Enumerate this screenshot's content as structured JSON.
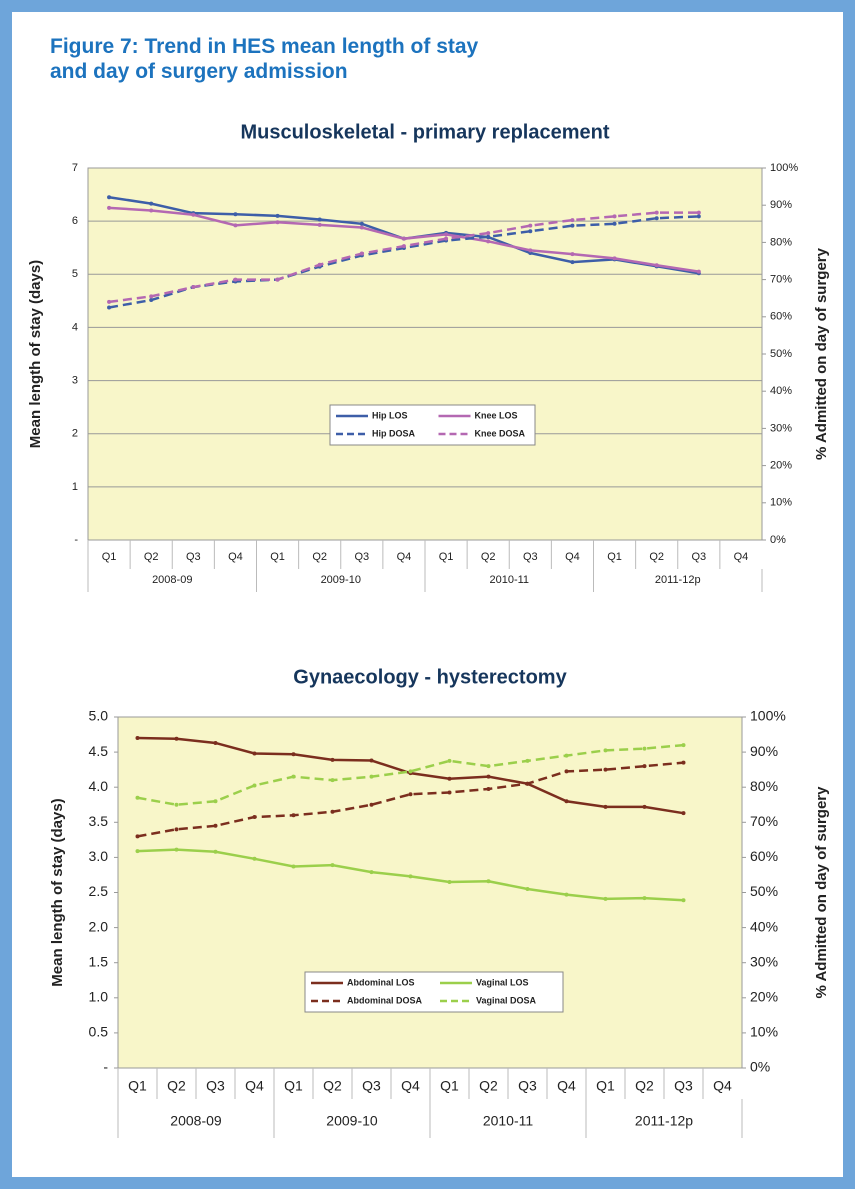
{
  "title": "Figure 7: Trend in HES mean length of stay and day of surgery admission",
  "chart_data": [
    {
      "type": "line",
      "title": "Musculoskeletal - primary replacement",
      "y_label": "Mean length of stay (days)",
      "y2_label": "% Admitted on day of surgery",
      "categories": [
        "Q1",
        "Q2",
        "Q3",
        "Q4",
        "Q1",
        "Q2",
        "Q3",
        "Q4",
        "Q1",
        "Q2",
        "Q3",
        "Q4",
        "Q1",
        "Q2",
        "Q3",
        "Q4"
      ],
      "category_groups": [
        "2008-09",
        "2009-10",
        "2010-11",
        "2011-12p"
      ],
      "ylim": [
        0,
        7
      ],
      "yticks": [
        {
          "value": 0,
          "label": "-"
        },
        1,
        2,
        3,
        4,
        5,
        6,
        7
      ],
      "y2lim": [
        0,
        100
      ],
      "y2ticks": [
        {
          "value": 0,
          "label": "0%"
        },
        {
          "value": 10,
          "label": "10%"
        },
        {
          "value": 20,
          "label": "20%"
        },
        {
          "value": 30,
          "label": "30%"
        },
        {
          "value": 40,
          "label": "40%"
        },
        {
          "value": 50,
          "label": "50%"
        },
        {
          "value": 60,
          "label": "60%"
        },
        {
          "value": 70,
          "label": "70%"
        },
        {
          "value": 80,
          "label": "80%"
        },
        {
          "value": 90,
          "label": "90%"
        },
        {
          "value": 100,
          "label": "100%"
        }
      ],
      "grid": true,
      "legend": "center",
      "series": [
        {
          "name": "Hip LOS",
          "color": "#3d5ea8",
          "dashed": false,
          "values": [
            6.45,
            6.33,
            6.15,
            6.13,
            6.1,
            6.03,
            5.95,
            5.67,
            5.78,
            5.7,
            5.4,
            5.23,
            5.28,
            5.15,
            5.02,
            null
          ]
        },
        {
          "name": "Knee LOS",
          "color": "#b468b2",
          "dashed": false,
          "values": [
            6.25,
            6.2,
            6.12,
            5.92,
            5.98,
            5.93,
            5.88,
            5.67,
            5.75,
            5.62,
            5.45,
            5.38,
            5.3,
            5.17,
            5.05,
            null
          ]
        },
        {
          "name": "Hip DOSA",
          "color": "#3d5ea8",
          "dashed": true,
          "axis": "y2",
          "values": [
            62.5,
            64.5,
            68,
            69.5,
            70,
            73.5,
            76.5,
            78.5,
            80.5,
            81.5,
            83,
            84.5,
            85,
            86.5,
            87,
            null
          ]
        },
        {
          "name": "Knee DOSA",
          "color": "#b468b2",
          "dashed": true,
          "axis": "y2",
          "values": [
            64,
            65.5,
            68,
            70,
            70,
            74,
            77,
            79,
            81,
            82.5,
            84.5,
            86,
            87,
            88,
            88,
            null
          ]
        }
      ]
    },
    {
      "type": "line",
      "title": "Gynaecology - hysterectomy",
      "y_label": "Mean length of stay (days)",
      "y2_label": "% Admitted on day of surgery",
      "categories": [
        "Q1",
        "Q2",
        "Q3",
        "Q4",
        "Q1",
        "Q2",
        "Q3",
        "Q4",
        "Q1",
        "Q2",
        "Q3",
        "Q4",
        "Q1",
        "Q2",
        "Q3",
        "Q4"
      ],
      "category_groups": [
        "2008-09",
        "2009-10",
        "2010-11",
        "2011-12p"
      ],
      "ylim": [
        0,
        5
      ],
      "yticks": [
        {
          "value": 0,
          "label": "-"
        },
        0.5,
        {
          "value": 1,
          "label": "1.0"
        },
        1.5,
        {
          "value": 2,
          "label": "2.0"
        },
        2.5,
        {
          "value": 3,
          "label": "3.0"
        },
        3.5,
        {
          "value": 4,
          "label": "4.0"
        },
        4.5,
        {
          "value": 5,
          "label": "5.0"
        }
      ],
      "y2lim": [
        0,
        100
      ],
      "y2ticks": [
        {
          "value": 0,
          "label": "0%"
        },
        {
          "value": 10,
          "label": "10%"
        },
        {
          "value": 20,
          "label": "20%"
        },
        {
          "value": 30,
          "label": "30%"
        },
        {
          "value": 40,
          "label": "40%"
        },
        {
          "value": 50,
          "label": "50%"
        },
        {
          "value": 60,
          "label": "60%"
        },
        {
          "value": 70,
          "label": "70%"
        },
        {
          "value": 80,
          "label": "80%"
        },
        {
          "value": 90,
          "label": "90%"
        },
        {
          "value": 100,
          "label": "100%"
        }
      ],
      "grid": false,
      "legend": "center",
      "series": [
        {
          "name": "Abdominal LOS",
          "color": "#7b2e1e",
          "dashed": false,
          "values": [
            4.7,
            4.69,
            4.63,
            4.48,
            4.47,
            4.39,
            4.38,
            4.2,
            4.12,
            4.15,
            4.05,
            3.8,
            3.72,
            3.72,
            3.63,
            null
          ]
        },
        {
          "name": "Vaginal LOS",
          "color": "#9bcf4b",
          "dashed": false,
          "values": [
            3.09,
            3.11,
            3.08,
            2.98,
            2.87,
            2.89,
            2.79,
            2.73,
            2.65,
            2.66,
            2.55,
            2.47,
            2.41,
            2.42,
            2.39,
            null
          ]
        },
        {
          "name": "Abdominal DOSA",
          "color": "#7b2e1e",
          "dashed": true,
          "axis": "y2",
          "values": [
            66,
            68,
            69,
            71.5,
            72,
            73,
            75,
            78,
            78.5,
            79.5,
            81,
            84.5,
            85,
            86,
            87,
            null
          ]
        },
        {
          "name": "Vaginal DOSA",
          "color": "#9bcf4b",
          "dashed": true,
          "axis": "y2",
          "values": [
            77,
            75,
            76,
            80.5,
            83,
            82,
            83,
            84.5,
            87.5,
            86,
            87.5,
            89,
            90.5,
            91,
            92,
            null
          ]
        }
      ]
    }
  ]
}
